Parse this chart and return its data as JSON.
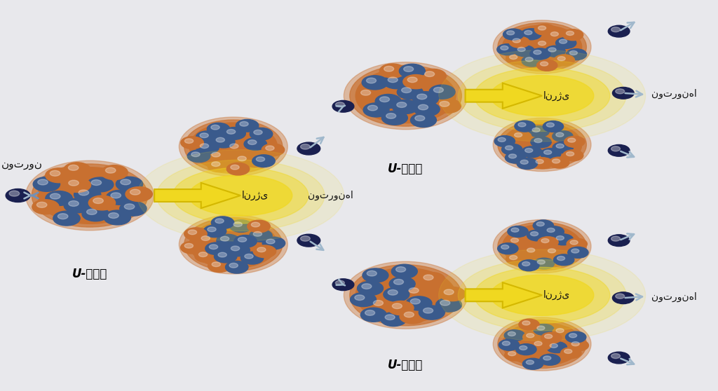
{
  "bg_color": "#e8e8ec",
  "blue_sphere": "#3a5a8c",
  "orange_sphere": "#c87030",
  "neutron_color": "#1a2050",
  "energy_color": "#f0d820",
  "yarr_color": "#d4b800",
  "light_arrow_color": "#a0b8cc",
  "text_color": "#111111",
  "fig_width": 10.24,
  "fig_height": 5.58,
  "dpi": 100,
  "persian_neutron": "نوترون",
  "persian_neutrons": "نوترون‌ها",
  "persian_energy": "انرژی",
  "u235": "U-۲۳۵"
}
